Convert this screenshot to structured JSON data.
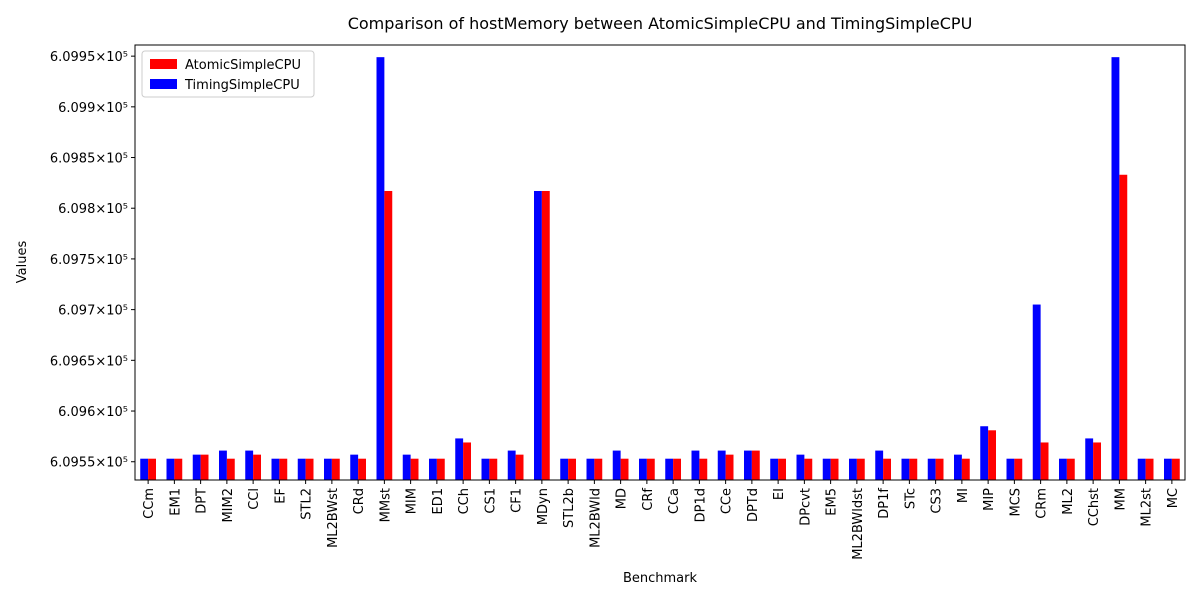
{
  "chart_data": {
    "type": "bar",
    "title": "Comparison of hostMemory between AtomicSimpleCPU and TimingSimpleCPU",
    "xlabel": "Benchmark",
    "ylabel": "Values",
    "categories": [
      "CCm",
      "EM1",
      "DPT",
      "MIM2",
      "CCl",
      "EF",
      "STL2",
      "ML2BWst",
      "CRd",
      "MMst",
      "MIM",
      "ED1",
      "CCh",
      "CS1",
      "CF1",
      "MDyn",
      "STL2b",
      "ML2BWld",
      "MD",
      "CRf",
      "CCa",
      "DP1d",
      "CCe",
      "DPTd",
      "EI",
      "DPcvt",
      "EM5",
      "ML2BWldst",
      "DP1f",
      "STc",
      "CS3",
      "MI",
      "MIP",
      "MCS",
      "CRm",
      "ML2",
      "CChst",
      "MM",
      "ML2st",
      "MC"
    ],
    "series": [
      {
        "name": "AtomicSimpleCPU",
        "color": "#ff0000",
        "values": [
          609553,
          609553,
          609557,
          609553,
          609557,
          609553,
          609553,
          609553,
          609553,
          609817,
          609553,
          609553,
          609569,
          609553,
          609557,
          609817,
          609553,
          609553,
          609553,
          609553,
          609553,
          609553,
          609557,
          609561,
          609553,
          609553,
          609553,
          609553,
          609553,
          609553,
          609553,
          609553,
          609581,
          609553,
          609569,
          609553,
          609569,
          609833,
          609553,
          609553
        ]
      },
      {
        "name": "TimingSimpleCPU",
        "color": "#0000ff",
        "values": [
          609553,
          609553,
          609557,
          609561,
          609561,
          609553,
          609553,
          609553,
          609557,
          609949,
          609557,
          609553,
          609573,
          609553,
          609561,
          609817,
          609553,
          609553,
          609561,
          609553,
          609553,
          609561,
          609561,
          609561,
          609553,
          609557,
          609553,
          609553,
          609561,
          609553,
          609553,
          609557,
          609585,
          609553,
          609705,
          609553,
          609573,
          609949,
          609553,
          609553
        ]
      }
    ],
    "yscale": "log",
    "ylim": [
      609532,
      609961
    ],
    "yticks": [
      {
        "value": 609550,
        "label": "6.0955×10⁵"
      },
      {
        "value": 609600,
        "label": "6.096×10⁵"
      },
      {
        "value": 609650,
        "label": "6.0965×10⁵"
      },
      {
        "value": 609700,
        "label": "6.097×10⁵"
      },
      {
        "value": 609750,
        "label": "6.0975×10⁵"
      },
      {
        "value": 609800,
        "label": "6.098×10⁵"
      },
      {
        "value": 609850,
        "label": "6.0985×10⁵"
      },
      {
        "value": 609900,
        "label": "6.099×10⁵"
      },
      {
        "value": 609950,
        "label": "6.0995×10⁵"
      }
    ],
    "grid": false,
    "legend": "upper left"
  }
}
